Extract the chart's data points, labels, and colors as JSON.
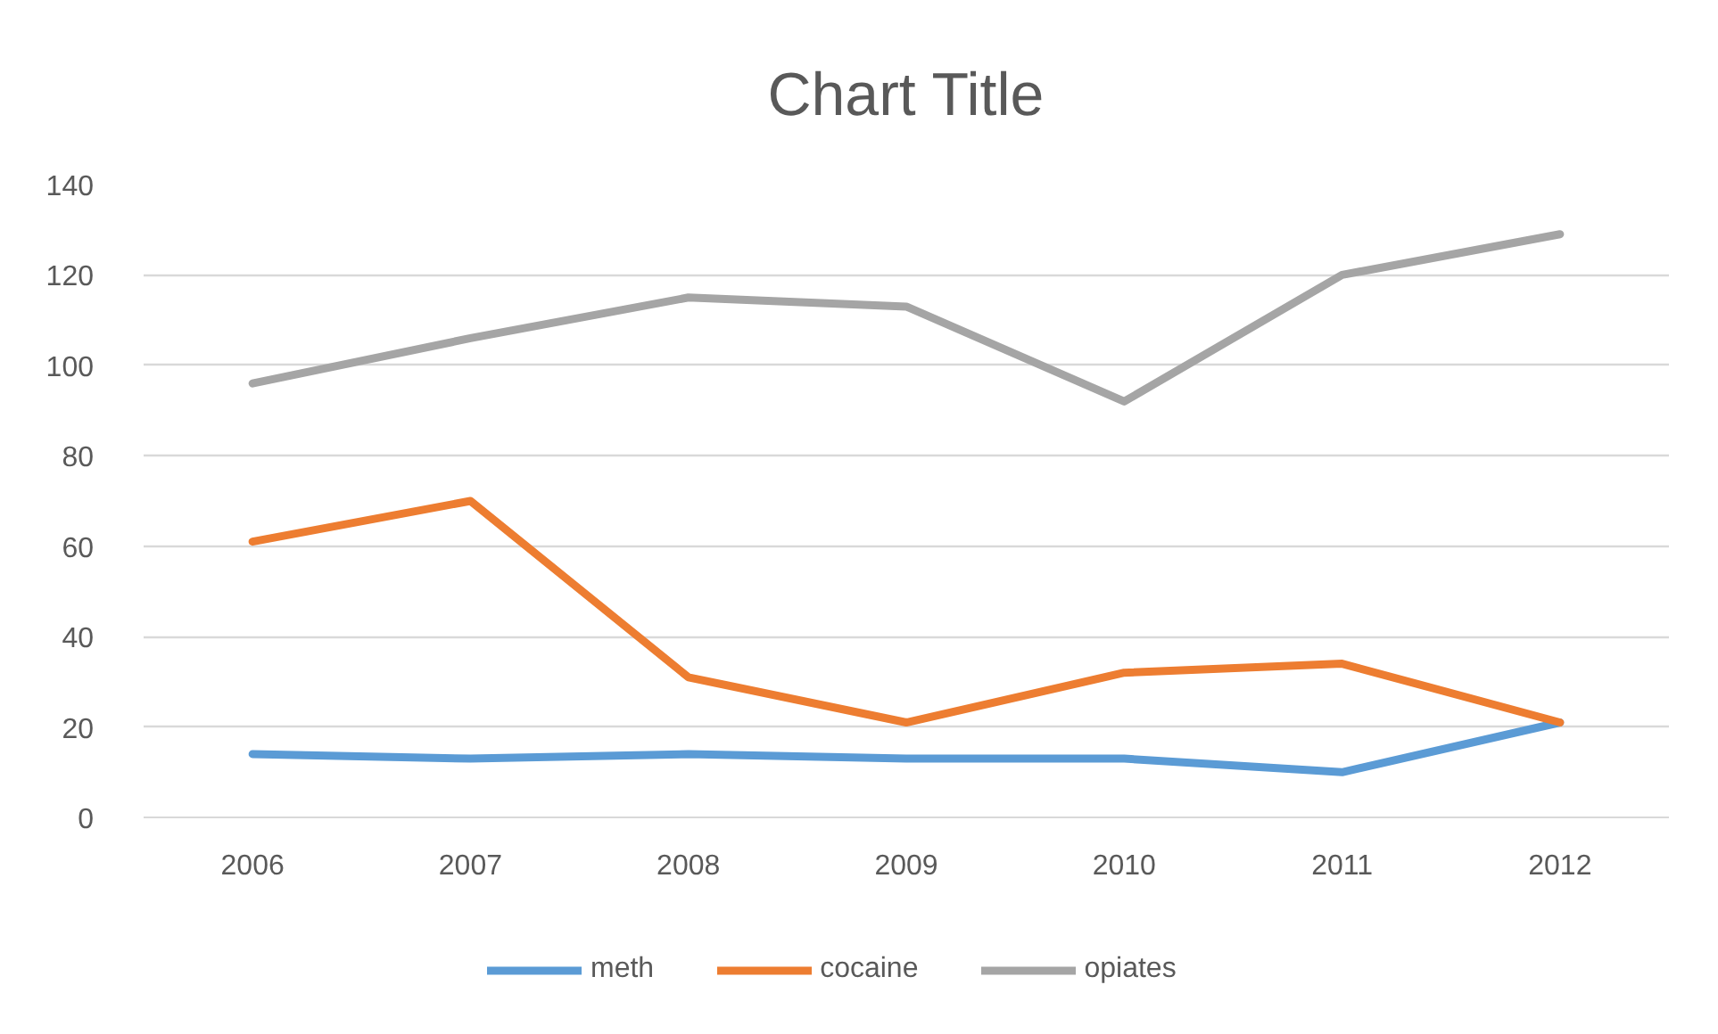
{
  "chart_data": {
    "type": "line",
    "title": "Chart Title",
    "categories": [
      "2006",
      "2007",
      "2008",
      "2009",
      "2010",
      "2011",
      "2012"
    ],
    "series": [
      {
        "name": "meth",
        "color": "#5b9bd5",
        "values": [
          14,
          13,
          14,
          13,
          13,
          10,
          21
        ]
      },
      {
        "name": "cocaine",
        "color": "#ed7d31",
        "values": [
          61,
          70,
          31,
          21,
          32,
          34,
          21
        ]
      },
      {
        "name": "opiates",
        "color": "#a5a5a5",
        "values": [
          96,
          106,
          115,
          113,
          92,
          120,
          129
        ]
      }
    ],
    "ylim": [
      0,
      140
    ],
    "yticks": [
      0,
      20,
      40,
      60,
      80,
      100,
      120,
      140
    ],
    "grid": "y",
    "legend": "bottom",
    "marker": "none",
    "line_style": "solid"
  }
}
